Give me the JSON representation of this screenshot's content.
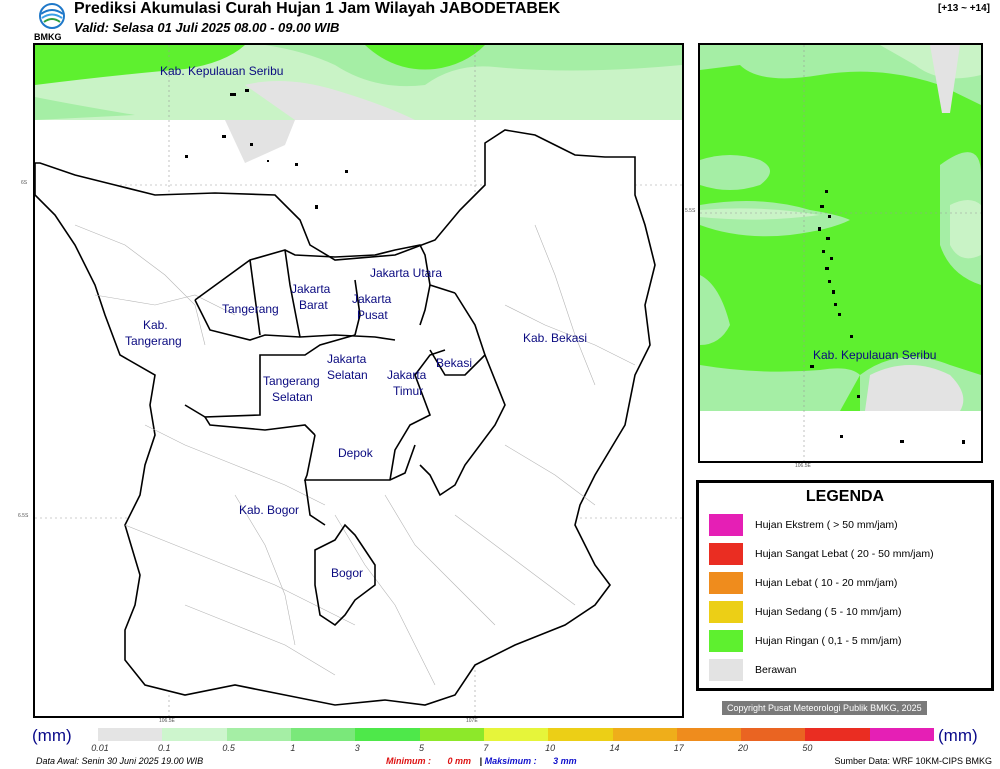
{
  "header": {
    "logo_text": "BMKG",
    "title": "Prediksi Akumulasi Curah Hujan 1 Jam Wilayah JABODETABEK",
    "valid": "Valid: Selasa 01 Juli 2025 08.00 - 09.00 WIB",
    "range": "[+13 ~ +14]"
  },
  "main_map": {
    "regions": [
      "Kab. Kepulauan Seribu",
      "Jakarta Utara",
      "Jakarta Barat",
      "Jakarta Pusat",
      "Tangerang",
      "Kab. Tangerang",
      "Kab. Bekasi",
      "Jakarta Selatan",
      "Jakarta Timur",
      "Bekasi",
      "Tangerang Selatan",
      "Depok",
      "Kab. Bogor",
      "Bogor"
    ],
    "lat_ticks": [
      "6S",
      "6.5S"
    ],
    "lon_ticks": [
      "106.5E",
      "107E"
    ]
  },
  "inset_map": {
    "regions": [
      "Kab. Kepulauan Seribu"
    ],
    "lat_tick": "5.5S",
    "lon_tick": "106.5E"
  },
  "legend": {
    "title": "LEGENDA",
    "items": [
      {
        "label": "Hujan Ekstrem ( > 50 mm/jam)",
        "color": "#e51fb5"
      },
      {
        "label": "Hujan Sangat Lebat ( 20 - 50 mm/jam)",
        "color": "#ea2d22"
      },
      {
        "label": "Hujan Lebat ( 10 - 20 mm/jam)",
        "color": "#ef8c1d"
      },
      {
        "label": "Hujan Sedang ( 5 - 10 mm/jam)",
        "color": "#eccf16"
      },
      {
        "label": "Hujan Ringan ( 0,1 - 5 mm/jam)",
        "color": "#5ef02f"
      },
      {
        "label": "Berawan",
        "color": "#e3e3e3"
      }
    ]
  },
  "copyright": "Copyright Pusat Meteorologi Publik BMKG, 2025",
  "colorbar": {
    "unit": "(mm)",
    "labels": [
      "0.01",
      "0.1",
      "0.5",
      "1",
      "3",
      "5",
      "7",
      "10",
      "14",
      "17",
      "20",
      "50"
    ],
    "colors": [
      "#e4e4e4",
      "#cdf5cd",
      "#a5eea5",
      "#7ae87a",
      "#4ee84a",
      "#8de82a",
      "#e6f53a",
      "#eccf16",
      "#efae1a",
      "#ef8c1d",
      "#ea6422",
      "#ea2d22",
      "#e51fb5"
    ]
  },
  "footer": {
    "data_awal": "Data Awal: Senin 30 Juni 2025 19.00 WIB",
    "minimum_label": "Minimum :",
    "minimum_value": "0 mm",
    "maksimum_label": "Maksimum :",
    "maksimum_value": "3 mm",
    "source": "Sumber Data: WRF 10KM-CIPS BMKG"
  }
}
